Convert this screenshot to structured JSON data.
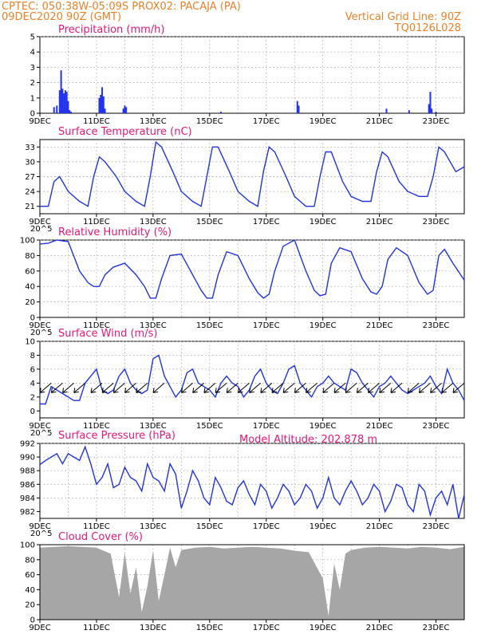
{
  "header": {
    "line1": "CPTEC:   050:38W-05:09S   PROX02: PACAJA (PA)",
    "line2": "09DEC2020 90Z (GMT)",
    "grid_note": "Vertical Grid Line: 90Z",
    "code": "TQ0126L028",
    "model_altitude": "Model Altitude: 202.878 m"
  },
  "colors": {
    "header": "#e8812a",
    "title": "#e0197a",
    "line": "#2233dd",
    "bar": "#2233ee",
    "cloud": "#a6a6a6",
    "arrow": "#000000"
  },
  "chart_data": [
    {
      "type": "bar",
      "title": "Precipitation (mm/h)",
      "ylim": [
        0,
        5
      ],
      "yticks": [
        0,
        1,
        2,
        3,
        4,
        5
      ],
      "yticklabels": [
        "0",
        "1",
        "2",
        "3",
        "4",
        "5"
      ],
      "xticks": [
        "9DEC",
        "11DEC",
        "13DEC",
        "15DEC",
        "17DEC",
        "19DEC",
        "21DEC",
        "23DEC"
      ],
      "grid": true,
      "x": [
        0.5,
        0.6,
        0.7,
        0.75,
        0.8,
        0.85,
        0.9,
        0.95,
        1.0,
        1.05,
        1.1,
        2.1,
        2.15,
        2.2,
        2.25,
        2.3,
        2.95,
        3.0,
        3.05,
        6.4,
        9.1,
        9.15,
        12.25,
        13.05,
        13.75,
        13.8,
        13.85,
        14.0
      ],
      "values": [
        0.4,
        0.5,
        1.5,
        2.8,
        1.6,
        1.3,
        1.5,
        1.4,
        0.8,
        0.2,
        0.1,
        1.0,
        1.2,
        1.7,
        1.1,
        0.3,
        0.3,
        0.5,
        0.4,
        0.1,
        0.8,
        0.5,
        0.3,
        0.2,
        0.6,
        1.4,
        0.3,
        0.1
      ]
    },
    {
      "type": "line",
      "title": "Surface Temperature (nC)",
      "ylim": [
        19.5,
        34.5
      ],
      "yticks": [
        21,
        24,
        27,
        30,
        33
      ],
      "yticklabels": [
        "21",
        "24",
        "27",
        "30",
        "33"
      ],
      "xticks": [
        "9DEC",
        "11DEC",
        "13DEC",
        "15DEC",
        "17DEC",
        "19DEC",
        "21DEC",
        "23DEC"
      ],
      "grid": true,
      "x": [
        0,
        0.3,
        0.5,
        0.7,
        1.0,
        1.4,
        1.7,
        1.9,
        2.1,
        2.3,
        2.7,
        3.0,
        3.4,
        3.7,
        3.9,
        4.1,
        4.3,
        4.7,
        5.0,
        5.4,
        5.7,
        5.9,
        6.1,
        6.3,
        6.7,
        7.0,
        7.4,
        7.7,
        7.9,
        8.1,
        8.3,
        8.7,
        9.0,
        9.4,
        9.7,
        9.9,
        10.1,
        10.3,
        10.7,
        11.0,
        11.4,
        11.7,
        11.9,
        12.1,
        12.3,
        12.7,
        13.0,
        13.4,
        13.7,
        13.9,
        14.1,
        14.3,
        14.7,
        15.0
      ],
      "values": [
        21,
        21,
        26,
        27,
        24,
        22,
        21,
        27,
        31,
        30,
        27,
        24,
        22,
        21,
        27,
        34,
        33,
        28,
        24,
        22,
        21,
        27,
        33,
        33,
        28,
        24,
        22,
        21,
        28,
        33,
        32,
        27,
        23,
        21,
        21,
        27,
        32,
        32,
        26,
        23,
        22,
        22,
        28,
        32,
        31,
        26,
        24,
        23,
        23,
        27,
        33,
        32,
        28,
        29
      ],
      "annotation": "20^5"
    },
    {
      "type": "line",
      "title": "Relative Humidity (%)",
      "ylim": [
        0,
        100
      ],
      "yticks": [
        0,
        20,
        40,
        60,
        80,
        100
      ],
      "yticklabels": [
        "0",
        "20",
        "40",
        "60",
        "80",
        "100"
      ],
      "xticks": [
        "9DEC",
        "11DEC",
        "13DEC",
        "15DEC",
        "17DEC",
        "19DEC",
        "21DEC",
        "23DEC"
      ],
      "grid": true,
      "x": [
        0,
        0.3,
        0.6,
        1.0,
        1.4,
        1.7,
        1.9,
        2.1,
        2.3,
        2.6,
        3.0,
        3.4,
        3.7,
        3.9,
        4.1,
        4.3,
        4.6,
        5.0,
        5.4,
        5.7,
        5.9,
        6.1,
        6.3,
        6.6,
        7.0,
        7.4,
        7.7,
        7.9,
        8.1,
        8.3,
        8.6,
        9.0,
        9.4,
        9.7,
        9.9,
        10.1,
        10.3,
        10.6,
        11.0,
        11.4,
        11.7,
        11.9,
        12.1,
        12.3,
        12.6,
        13.0,
        13.4,
        13.7,
        13.9,
        14.1,
        14.3,
        14.6,
        15.0
      ],
      "values": [
        95,
        96,
        100,
        98,
        60,
        45,
        40,
        40,
        55,
        65,
        70,
        55,
        40,
        25,
        25,
        50,
        80,
        82,
        55,
        35,
        25,
        25,
        55,
        85,
        80,
        50,
        32,
        25,
        30,
        60,
        92,
        100,
        60,
        35,
        28,
        30,
        70,
        90,
        85,
        50,
        33,
        30,
        40,
        75,
        90,
        80,
        45,
        30,
        35,
        80,
        88,
        70,
        48
      ],
      "annotation": "20^5"
    },
    {
      "type": "line",
      "title": "Surface Wind (m/s)",
      "ylim": [
        -1,
        10
      ],
      "yticks": [
        0,
        2,
        4,
        6,
        8,
        10
      ],
      "yticklabels": [
        "0",
        "2",
        "4",
        "6",
        "8",
        "10"
      ],
      "xticks": [
        "9DEC",
        "11DEC",
        "13DEC",
        "15DEC",
        "17DEC",
        "19DEC",
        "21DEC",
        "23DEC"
      ],
      "grid": true,
      "x": [
        0,
        0.2,
        0.4,
        0.6,
        0.8,
        1.0,
        1.2,
        1.4,
        1.6,
        1.8,
        2.0,
        2.2,
        2.4,
        2.6,
        2.8,
        3.0,
        3.2,
        3.4,
        3.6,
        3.8,
        4.0,
        4.2,
        4.4,
        4.6,
        4.8,
        5.0,
        5.2,
        5.4,
        5.6,
        5.8,
        6.0,
        6.2,
        6.4,
        6.6,
        6.8,
        7.0,
        7.2,
        7.4,
        7.6,
        7.8,
        8.0,
        8.2,
        8.4,
        8.6,
        8.8,
        9.0,
        9.2,
        9.4,
        9.6,
        9.8,
        10.0,
        10.2,
        10.4,
        10.6,
        10.8,
        11.0,
        11.2,
        11.4,
        11.6,
        11.8,
        12.0,
        12.2,
        12.4,
        12.6,
        12.8,
        13.0,
        13.2,
        13.4,
        13.6,
        13.8,
        14.0,
        14.2,
        14.4,
        14.6,
        14.8,
        15.0
      ],
      "values": [
        1,
        1,
        3.5,
        3,
        2.5,
        2,
        1.5,
        1.5,
        4,
        5,
        6,
        3,
        2.5,
        3,
        5,
        6,
        4,
        3,
        2.5,
        3,
        7.5,
        8,
        5,
        3.5,
        2,
        3,
        5.5,
        6,
        4,
        3.5,
        3,
        2,
        4,
        5,
        4,
        3.5,
        2,
        3,
        5,
        6,
        4,
        3,
        2.5,
        4,
        6,
        6.5,
        4,
        3,
        2,
        3.5,
        4,
        5,
        4,
        3.5,
        3,
        6,
        5.5,
        4,
        3,
        2,
        3.5,
        4,
        5,
        4,
        3,
        2.5,
        3,
        3.5,
        4,
        5,
        3.5,
        2.5,
        6,
        4,
        3,
        1.5
      ],
      "arrow_x": [
        0.4,
        0.8,
        1.2,
        1.6,
        2.2,
        2.6,
        3.0,
        3.4,
        3.8,
        4.4,
        5.4,
        5.8,
        6.2,
        6.6,
        7.0,
        7.4,
        7.8,
        8.2,
        8.6,
        9.0,
        9.4,
        9.8,
        10.4,
        10.8,
        11.2,
        11.6,
        12.0,
        12.4,
        12.8,
        13.4,
        13.8,
        14.2,
        14.6,
        15.0
      ],
      "arrow_y": [
        4,
        4,
        4,
        4,
        4,
        4,
        4,
        4,
        4,
        4,
        4,
        4,
        4,
        4,
        4,
        4,
        4,
        4,
        4,
        4,
        4,
        4,
        4,
        4,
        4,
        4,
        4,
        4,
        4,
        4,
        4,
        4,
        4,
        4
      ],
      "annotation": "20^5"
    },
    {
      "type": "line",
      "title": "Surface Pressure (hPa)",
      "ylim": [
        981,
        992
      ],
      "yticks": [
        982,
        984,
        986,
        988,
        990,
        992
      ],
      "yticklabels": [
        "982",
        "984",
        "986",
        "988",
        "990",
        "992"
      ],
      "xticks": [
        "9DEC",
        "11DEC",
        "13DEC",
        "15DEC",
        "17DEC",
        "19DEC",
        "21DEC",
        "23DEC"
      ],
      "grid": true,
      "x": [
        0,
        0.2,
        0.4,
        0.6,
        0.8,
        1.0,
        1.2,
        1.4,
        1.6,
        1.8,
        2.0,
        2.2,
        2.4,
        2.6,
        2.8,
        3.0,
        3.2,
        3.4,
        3.6,
        3.8,
        4.0,
        4.2,
        4.4,
        4.6,
        4.8,
        5.0,
        5.2,
        5.4,
        5.6,
        5.8,
        6.0,
        6.2,
        6.4,
        6.6,
        6.8,
        7.0,
        7.2,
        7.4,
        7.6,
        7.8,
        8.0,
        8.2,
        8.4,
        8.6,
        8.8,
        9.0,
        9.2,
        9.4,
        9.6,
        9.8,
        10.0,
        10.2,
        10.4,
        10.6,
        10.8,
        11.0,
        11.2,
        11.4,
        11.6,
        11.8,
        12.0,
        12.2,
        12.4,
        12.6,
        12.8,
        13.0,
        13.2,
        13.4,
        13.6,
        13.8,
        14.0,
        14.2,
        14.4,
        14.6,
        14.8,
        15.0
      ],
      "values": [
        988.9,
        989.5,
        990,
        990.5,
        989,
        990.5,
        990,
        989.5,
        991.5,
        989,
        986,
        987,
        989,
        985.5,
        986,
        988.5,
        987,
        986.5,
        985,
        989,
        987,
        986.5,
        985,
        989,
        987.5,
        982.5,
        985,
        988,
        986.5,
        984,
        983,
        987,
        985.5,
        983.5,
        983,
        985.5,
        986.5,
        984.5,
        983,
        986,
        985,
        982.5,
        984,
        986,
        985,
        983,
        984,
        986,
        985,
        982.5,
        984,
        987,
        984,
        983,
        985,
        986.5,
        985,
        983,
        984,
        986,
        985,
        982,
        983.5,
        986,
        985.5,
        983,
        982,
        986,
        985,
        981.5,
        984,
        985,
        983,
        986,
        981,
        984.5
      ],
      "annotation": "20^5"
    },
    {
      "type": "area",
      "title": "Cloud Cover (%)",
      "ylim": [
        0,
        100
      ],
      "yticks": [
        0,
        20,
        40,
        60,
        80,
        100
      ],
      "yticklabels": [
        "0",
        "20",
        "40",
        "60",
        "80",
        "100"
      ],
      "xticks": [
        "9DEC",
        "11DEC",
        "13DEC",
        "15DEC",
        "17DEC",
        "19DEC",
        "21DEC",
        "23DEC"
      ],
      "grid": true,
      "x": [
        0,
        0.5,
        1.0,
        1.5,
        2.0,
        2.5,
        2.8,
        3.0,
        3.2,
        3.4,
        3.6,
        3.8,
        4.0,
        4.2,
        4.4,
        4.6,
        4.8,
        5.0,
        5.5,
        6.0,
        6.5,
        7.0,
        7.5,
        8.0,
        8.5,
        9.0,
        9.5,
        10.0,
        10.2,
        10.4,
        10.6,
        10.8,
        11.0,
        11.5,
        12.0,
        12.5,
        13.0,
        13.5,
        14.0,
        14.5,
        15.0
      ],
      "values": [
        96,
        97,
        98,
        97,
        96,
        88,
        30,
        90,
        35,
        70,
        10,
        45,
        92,
        25,
        60,
        96,
        70,
        93,
        96,
        97,
        95,
        96,
        97,
        96,
        95,
        92,
        90,
        55,
        5,
        75,
        40,
        88,
        93,
        96,
        97,
        96,
        95,
        97,
        96,
        94,
        97
      ]
    }
  ]
}
